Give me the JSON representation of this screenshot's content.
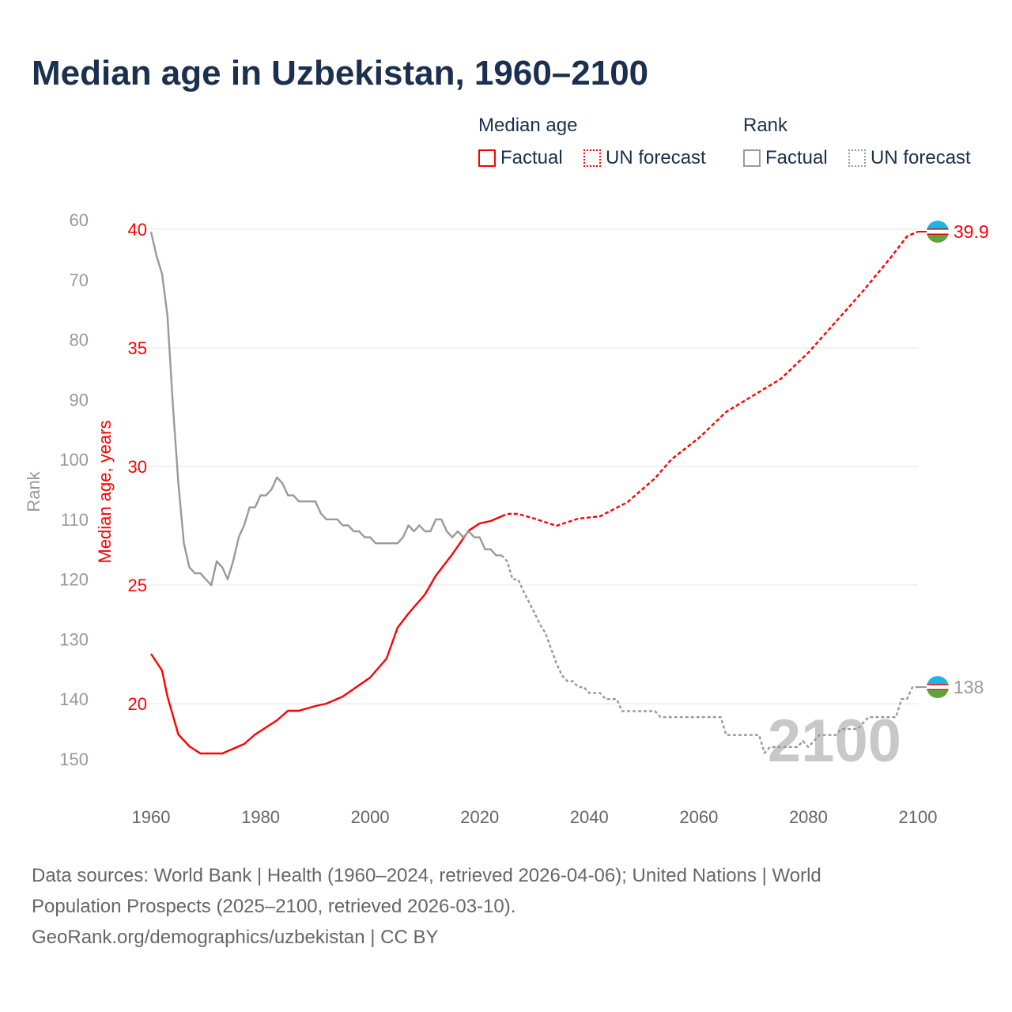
{
  "title": "Median age in Uzbekistan, 1960–2100",
  "legend": {
    "group1": "Median age",
    "group2": "Rank",
    "items": [
      {
        "label": "Factual",
        "style": "solid",
        "color": "#ff0000"
      },
      {
        "label": "UN forecast",
        "style": "dotted",
        "color": "#ff0000"
      },
      {
        "label": "Factual",
        "style": "solid",
        "color": "#999999"
      },
      {
        "label": "UN forecast",
        "style": "dotted",
        "color": "#999999"
      }
    ]
  },
  "footer": {
    "line1": "Data sources: World Bank | Health (1960–2024, retrieved 2026-04-06); United Nations | World",
    "line2": "Population Prospects (2025–2100, retrieved 2026-03-10).",
    "line3": "GeoRank.org/demographics/uzbekistan | CC BY"
  },
  "chart_data": {
    "type": "line",
    "title": "Median age in Uzbekistan, 1960–2100",
    "xlabel": "",
    "ylabel": "Median age, years",
    "y2label": "Rank",
    "xlim": [
      1960,
      2100
    ],
    "ylim": [
      16,
      40
    ],
    "y2lim": [
      60,
      150
    ],
    "y2_inverted": true,
    "xticks": [
      "1960",
      "1980",
      "2000",
      "2020",
      "2040",
      "2060",
      "2080",
      "2100"
    ],
    "yticks": [
      "20",
      "25",
      "30",
      "35",
      "40"
    ],
    "y2ticks": [
      "60",
      "70",
      "80",
      "90",
      "100",
      "110",
      "120",
      "130",
      "140",
      "150"
    ],
    "watermark": "2100",
    "end_labels": {
      "median_age": "39.9",
      "rank": "138"
    },
    "colors": {
      "median_age": "#ff0000",
      "rank": "#999999",
      "grid": "#e6e6e6"
    },
    "series": [
      {
        "name": "Median age (factual)",
        "axis": "left",
        "x": [
          1960,
          1962,
          1963,
          1965,
          1967,
          1969,
          1970,
          1973,
          1975,
          1977,
          1979,
          1981,
          1983,
          1985,
          1987,
          1990,
          1992,
          1995,
          2000,
          2003,
          2005,
          2007,
          2010,
          2012,
          2015,
          2018,
          2020,
          2022,
          2024
        ],
        "y": [
          22.1,
          21.4,
          20.3,
          18.7,
          18.2,
          17.9,
          17.9,
          17.9,
          18.1,
          18.3,
          18.7,
          19.0,
          19.3,
          19.7,
          19.7,
          19.9,
          20.0,
          20.3,
          21.1,
          21.9,
          23.2,
          23.8,
          24.6,
          25.4,
          26.3,
          27.3,
          27.6,
          27.7,
          27.9
        ]
      },
      {
        "name": "Median age (UN forecast)",
        "axis": "left",
        "x": [
          2024,
          2025,
          2027,
          2030,
          2034,
          2038,
          2042,
          2047,
          2052,
          2055,
          2060,
          2065,
          2070,
          2075,
          2080,
          2085,
          2090,
          2095,
          2098,
          2100
        ],
        "y": [
          27.9,
          28.0,
          28.0,
          27.8,
          27.5,
          27.8,
          27.9,
          28.5,
          29.5,
          30.3,
          31.2,
          32.3,
          33.0,
          33.7,
          34.8,
          36.1,
          37.4,
          38.8,
          39.7,
          39.9
        ]
      },
      {
        "name": "Rank (factual)",
        "axis": "right",
        "x": [
          1960,
          1961,
          1962,
          1963,
          1964,
          1965,
          1966,
          1967,
          1968,
          1969,
          1970,
          1971,
          1972,
          1973,
          1974,
          1975,
          1976,
          1977,
          1978,
          1979,
          1980,
          1981,
          1982,
          1983,
          1984,
          1985,
          1986,
          1987,
          1988,
          1989,
          1990,
          1991,
          1992,
          1993,
          1994,
          1995,
          1996,
          1997,
          1998,
          1999,
          2000,
          2001,
          2002,
          2003,
          2004,
          2005,
          2006,
          2007,
          2008,
          2009,
          2010,
          2011,
          2012,
          2013,
          2014,
          2015,
          2016,
          2017,
          2018,
          2019,
          2020,
          2021,
          2022,
          2023,
          2024
        ],
        "y": [
          62,
          66,
          69,
          76,
          91,
          104,
          114,
          118,
          119,
          119,
          120,
          121,
          117,
          118,
          120,
          117,
          113,
          111,
          108,
          108,
          106,
          106,
          105,
          103,
          104,
          106,
          106,
          107,
          107,
          107,
          107,
          109,
          110,
          110,
          110,
          111,
          111,
          112,
          112,
          113,
          113,
          114,
          114,
          114,
          114,
          114,
          113,
          111,
          112,
          111,
          112,
          112,
          110,
          110,
          112,
          113,
          112,
          113,
          112,
          113,
          113,
          115,
          115,
          116,
          116
        ]
      },
      {
        "name": "Rank (UN forecast)",
        "axis": "right",
        "x": [
          2024,
          2025,
          2026,
          2027,
          2028,
          2030,
          2031,
          2032,
          2033,
          2034,
          2035,
          2036,
          2037,
          2038,
          2039,
          2040,
          2042,
          2043,
          2045,
          2046,
          2052,
          2053,
          2064,
          2065,
          2071,
          2072,
          2073,
          2078,
          2079,
          2080,
          2081,
          2082,
          2085,
          2086,
          2089,
          2090,
          2091,
          2096,
          2097,
          2098,
          2099,
          2100
        ],
        "y": [
          116,
          117,
          120,
          120,
          122,
          125.6,
          127.5,
          129,
          131.5,
          134,
          136,
          137,
          137,
          138,
          138,
          139,
          139,
          140,
          140,
          142,
          142,
          143,
          143,
          146,
          146,
          149,
          148,
          148,
          147,
          148,
          147,
          146,
          146,
          145,
          145,
          144,
          143,
          143,
          140,
          140,
          138,
          138
        ]
      }
    ]
  }
}
